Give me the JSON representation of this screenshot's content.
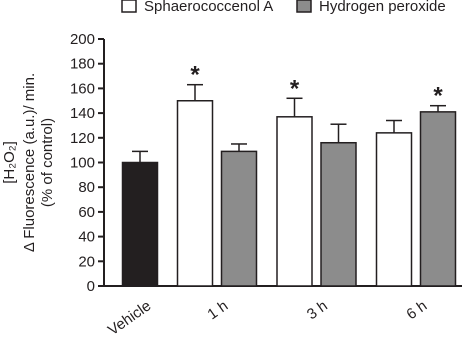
{
  "chart_data": {
    "type": "bar",
    "ylabel": [
      "[H₂O₂]",
      "Δ Fluorescence (a.u.)/ min.",
      "(% of control)"
    ],
    "categories": [
      "Vehicle",
      "1 h",
      "3 h",
      "6 h"
    ],
    "series": [
      {
        "color": "#231f20",
        "values": [
          100,
          null,
          null,
          null
        ],
        "errors": [
          9,
          null,
          null,
          null
        ]
      },
      {
        "name": "Sphaerococcenol A",
        "color": "#ffffff",
        "values": [
          null,
          150,
          137,
          124
        ],
        "errors": [
          null,
          13,
          15,
          10
        ],
        "annotations": [
          null,
          "*",
          "*",
          null
        ]
      },
      {
        "name": "Hydrogen peroxide",
        "color": "#8c8c8c",
        "values": [
          null,
          109,
          116,
          141
        ],
        "errors": [
          null,
          6,
          15,
          5
        ],
        "annotations": [
          null,
          null,
          null,
          "*"
        ]
      }
    ],
    "ylim": [
      0,
      200
    ],
    "yticks": [
      0,
      20,
      40,
      60,
      80,
      100,
      120,
      140,
      160,
      180,
      200
    ]
  }
}
